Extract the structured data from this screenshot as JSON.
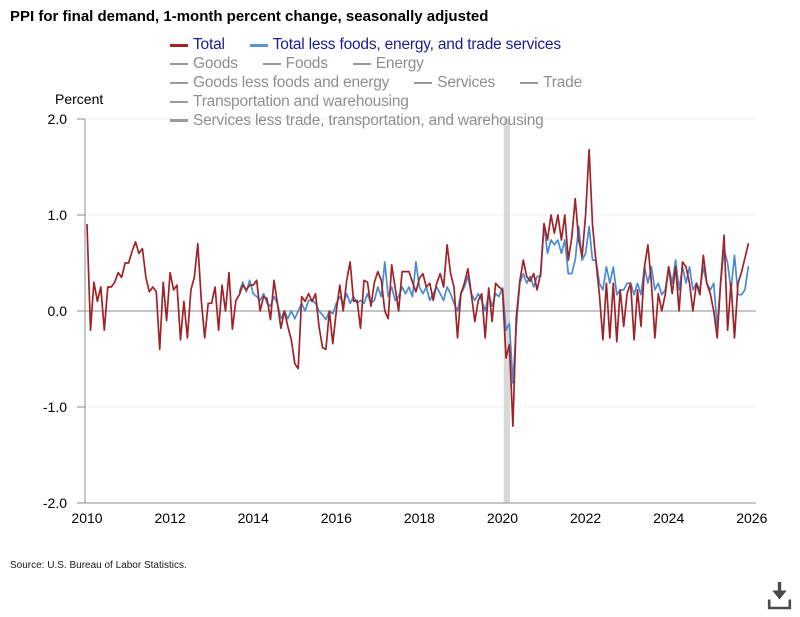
{
  "title": "PPI for final demand, 1-month percent change, seasonally adjusted",
  "ylabel": "Percent",
  "source": "Source: U.S. Bureau of Labor Statistics.",
  "legend": {
    "active": [
      {
        "label": "Total",
        "color": "#a02328",
        "text_color": "#1c1c94"
      },
      {
        "label": "Total less foods, energy, and trade services",
        "color": "#5b94d6",
        "text_color": "#1c1c94"
      }
    ],
    "inactive_rows": [
      [
        "Goods",
        "Foods",
        "Energy"
      ],
      [
        "Goods less foods and energy",
        "Services",
        "Trade"
      ],
      [
        "Transportation and warehousing"
      ],
      [
        "Services less trade, transportation, and warehousing"
      ]
    ],
    "inactive_text_color": "#8f8f8f",
    "inactive_dash_color": "#9a9a9a"
  },
  "chart_data": {
    "type": "line",
    "title": "PPI for final demand, 1-month percent change, seasonally adjusted",
    "ylabel": "Percent",
    "ylim": [
      -2.0,
      2.0
    ],
    "grid": true,
    "legend_position": "top",
    "yticks": [
      {
        "label": "2.0",
        "value": 2.0
      },
      {
        "label": "1.0",
        "value": 1.0
      },
      {
        "label": "0.0",
        "value": 0.0
      },
      {
        "label": "-1.0",
        "value": -1.0
      },
      {
        "label": "-2.0",
        "value": -2.0
      }
    ],
    "xticks": [
      {
        "label": "2010",
        "value": 2010
      },
      {
        "label": "2012",
        "value": 2012
      },
      {
        "label": "2014",
        "value": 2014
      },
      {
        "label": "2016",
        "value": 2016
      },
      {
        "label": "2018",
        "value": 2018
      },
      {
        "label": "2020",
        "value": 2020
      },
      {
        "label": "2022",
        "value": 2022
      },
      {
        "label": "2024",
        "value": 2024
      },
      {
        "label": "2026",
        "value": 2026
      }
    ],
    "recession_band": {
      "from": 2020.03,
      "to": 2020.185,
      "color": "#d9d9d9"
    },
    "frequency": "monthly",
    "series": [
      {
        "name": "Total less foods, energy, and trade services",
        "color": "#4a8cd3",
        "start_year": 2013,
        "start_month": 9,
        "values": [
          0.2,
          0.3,
          0.2,
          0.32,
          0.18,
          0.15,
          0.11,
          0.18,
          0.08,
          0.05,
          0.15,
          0.08,
          -0.08,
          0.0,
          -0.08,
          0.0,
          -0.08,
          0.0,
          0.08,
          0.0,
          0.11,
          0.11,
          0.08,
          0.0,
          -0.04,
          -0.09,
          0.0,
          -0.03,
          0.08,
          0.15,
          0.08,
          0.18,
          0.08,
          0.15,
          0.08,
          0.11,
          0.08,
          0.18,
          0.08,
          0.11,
          0.25,
          0.15,
          0.51,
          0.15,
          0.25,
          0.11,
          0.15,
          0.25,
          0.18,
          0.25,
          0.15,
          0.51,
          0.25,
          0.18,
          0.25,
          0.11,
          0.18,
          0.25,
          0.18,
          0.11,
          0.25,
          0.18,
          0.08,
          0.0,
          0.18,
          0.25,
          0.36,
          0.18,
          0.11,
          0.18,
          0.11,
          0.0,
          0.18,
          0.05,
          0.18,
          0.15,
          0.24,
          -0.2,
          -0.13,
          -0.75,
          -0.16,
          0.29,
          0.39,
          0.29,
          0.36,
          0.25,
          0.36,
          0.36,
          0.9,
          0.6,
          0.74,
          0.69,
          0.74,
          0.6,
          0.74,
          0.39,
          0.39,
          0.53,
          0.88,
          0.53,
          0.6,
          0.88,
          0.53,
          0.53,
          0.29,
          0.22,
          0.46,
          0.29,
          0.46,
          0.17,
          0.22,
          0.22,
          0.29,
          0.29,
          0.17,
          0.29,
          0.17,
          0.46,
          0.29,
          0.46,
          0.22,
          0.29,
          0.17,
          0.22,
          0.46,
          0.29,
          0.53,
          0.22,
          0.46,
          0.29,
          0.46,
          0.22,
          0.29,
          0.22,
          0.46,
          0.29,
          0.22,
          0.29,
          -0.16,
          0.29,
          0.64,
          0.5,
          0.22,
          0.58,
          0.17,
          0.17,
          0.22,
          0.46
        ]
      },
      {
        "name": "Total",
        "color": "#a02328",
        "start_year": 2010,
        "start_month": 1,
        "values": [
          0.9,
          -0.2,
          0.3,
          0.1,
          0.25,
          -0.2,
          0.25,
          0.25,
          0.3,
          0.4,
          0.35,
          0.5,
          0.5,
          0.62,
          0.72,
          0.6,
          0.65,
          0.35,
          0.2,
          0.25,
          0.2,
          -0.4,
          0.3,
          -0.1,
          0.4,
          0.22,
          0.27,
          -0.3,
          0.1,
          -0.28,
          0.22,
          0.35,
          0.7,
          0.11,
          -0.28,
          0.08,
          0.08,
          0.25,
          -0.2,
          0.27,
          0.0,
          0.4,
          -0.19,
          0.11,
          0.17,
          0.27,
          0.22,
          0.27,
          0.27,
          0.32,
          0.0,
          0.15,
          0.13,
          -0.09,
          0.32,
          0.08,
          -0.18,
          0.0,
          -0.16,
          -0.3,
          -0.55,
          -0.6,
          0.15,
          0.1,
          0.18,
          0.1,
          0.18,
          -0.16,
          -0.38,
          -0.4,
          0.0,
          -0.34,
          0.0,
          0.27,
          0.0,
          0.32,
          0.51,
          0.1,
          0.11,
          -0.18,
          0.32,
          0.3,
          0.05,
          0.3,
          0.41,
          0.32,
          0.0,
          -0.08,
          0.48,
          0.24,
          0.0,
          0.41,
          0.41,
          0.41,
          0.3,
          0.2,
          0.34,
          0.39,
          0.25,
          0.29,
          0.11,
          0.29,
          0.39,
          0.25,
          0.69,
          0.39,
          0.25,
          -0.28,
          0.18,
          0.29,
          0.44,
          0.18,
          -0.11,
          0.11,
          0.18,
          -0.28,
          0.24,
          -0.11,
          0.29,
          0.25,
          0.22,
          -0.49,
          -0.35,
          -1.2,
          -0.06,
          0.31,
          0.53,
          0.36,
          0.31,
          0.39,
          0.22,
          0.39,
          0.91,
          0.74,
          1.0,
          0.81,
          1.0,
          0.74,
          1.0,
          0.53,
          0.77,
          1.17,
          0.74,
          0.57,
          1.0,
          1.68,
          0.9,
          0.51,
          0.17,
          -0.3,
          0.29,
          -0.28,
          0.29,
          -0.32,
          0.22,
          -0.16,
          0.18,
          0.29,
          -0.3,
          0.22,
          -0.16,
          0.46,
          0.69,
          0.29,
          -0.28,
          0.18,
          0.0,
          0.17,
          0.46,
          0.18,
          0.46,
          0.0,
          0.51,
          0.46,
          0.29,
          0.0,
          0.29,
          0.17,
          0.58,
          0.29,
          0.18,
          0.0,
          -0.28,
          0.29,
          0.79,
          -0.2,
          0.29,
          -0.28,
          0.29,
          0.4,
          0.55,
          0.7
        ]
      }
    ]
  },
  "download": {
    "label": "download",
    "color": "#4a4a4a"
  }
}
